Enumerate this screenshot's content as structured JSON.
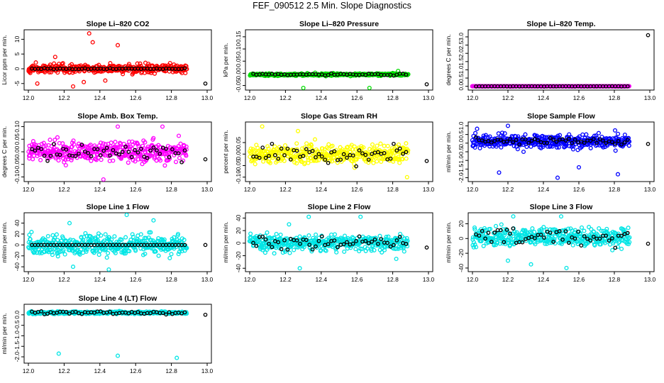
{
  "page": {
    "title": "FEF_090512  2.5 Min. Slope Diagnostics"
  },
  "chart_data": [
    {
      "type": "scatter",
      "title": "Slope Li–820 CO2",
      "ylabel": "Licor ppm per min.",
      "xlim": [
        12.0,
        13.0
      ],
      "ylim": [
        -6.5,
        12.5
      ],
      "xticks": [
        "12.0",
        "12.2",
        "12.4",
        "12.6",
        "12.8",
        "13.0"
      ],
      "yticks": [
        "-5",
        "0",
        "5",
        "10"
      ],
      "yvals": [
        -5,
        0,
        5,
        10
      ],
      "color": "#ff0000",
      "spread": 1.3,
      "outliers": [
        [
          12.34,
          12
        ],
        [
          12.36,
          9
        ],
        [
          12.25,
          -6
        ],
        [
          12.05,
          -5
        ],
        [
          12.31,
          -4.5
        ],
        [
          12.5,
          8
        ],
        [
          12.43,
          -4
        ],
        [
          12.15,
          4
        ]
      ],
      "black_spread": 0.15,
      "last_point": [
        12.99,
        -5
      ]
    },
    {
      "type": "scatter",
      "title": "Slope Li–820 Pressure",
      "ylabel": "kPa per min.",
      "xlim": [
        12.0,
        13.0
      ],
      "ylim": [
        -0.06,
        0.17
      ],
      "xticks": [
        "12.0",
        "12.2",
        "12.4",
        "12.6",
        "12.8",
        "13.0"
      ],
      "yticks": [
        "-0.05",
        "0.00",
        "0.05",
        "0.10",
        "0.15"
      ],
      "yvals": [
        -0.05,
        0,
        0.05,
        0.1,
        0.15
      ],
      "color": "#00dd00",
      "spread": 0.004,
      "base": -0.005,
      "outliers": [
        [
          12.3,
          -0.06
        ],
        [
          12.67,
          -0.06
        ],
        [
          12.83,
          0.01
        ]
      ],
      "black_spread": 0.003,
      "last_point": [
        12.99,
        -0.045
      ]
    },
    {
      "type": "scatter",
      "title": "Slope Li–820 Temp.",
      "ylabel": "degrees C per min.",
      "xlim": [
        12.0,
        13.0
      ],
      "ylim": [
        -0.1,
        3.3
      ],
      "xticks": [
        "12.0",
        "12.2",
        "12.4",
        "12.6",
        "12.8",
        "13.0"
      ],
      "yticks": [
        "0.0",
        "0.5",
        "1.0",
        "1.5",
        "2.0",
        "2.5",
        "3.0"
      ],
      "yvals": [
        0,
        0.5,
        1,
        1.5,
        2,
        2.5,
        3
      ],
      "color": "#ee00ee",
      "spread": 0.01,
      "outliers": [],
      "black_spread": 0.005,
      "last_point": [
        12.99,
        3.1
      ]
    },
    {
      "type": "scatter",
      "title": "Slope Amb. Box Temp.",
      "ylabel": "degrees C per min.",
      "xlim": [
        12.0,
        13.0
      ],
      "ylim": [
        -0.11,
        0.11
      ],
      "xticks": [
        "12.0",
        "12.2",
        "12.4",
        "12.6",
        "12.8",
        "13.0"
      ],
      "yticks": [
        "-0.10",
        "-0.05",
        "0.00",
        "0.05",
        "0.10"
      ],
      "yvals": [
        -0.1,
        -0.05,
        0,
        0.05,
        0.1
      ],
      "color": "#ff00ff",
      "spread": 0.035,
      "outliers": [
        [
          12.42,
          -0.11
        ],
        [
          12.5,
          0.1
        ],
        [
          12.75,
          0.1
        ]
      ],
      "black_spread": 0.03,
      "last_point": [
        12.99,
        -0.03
      ]
    },
    {
      "type": "scatter",
      "title": "Slope Gas Stream RH",
      "ylabel": "percent per min.",
      "xlim": [
        12.0,
        13.0
      ],
      "ylim": [
        -0.11,
        0.13
      ],
      "xticks": [
        "12.0",
        "12.2",
        "12.4",
        "12.6",
        "12.8",
        "13.0"
      ],
      "yticks": [
        "-0.10",
        "-0.05",
        "0.00",
        "0.05"
      ],
      "yvals": [
        -0.1,
        -0.05,
        0,
        0.05
      ],
      "color": "#ffff00",
      "spread": 0.035,
      "outliers": [
        [
          12.07,
          0.12
        ],
        [
          12.27,
          0.1
        ],
        [
          12.88,
          -0.1
        ]
      ],
      "black_spread": 0.03,
      "last_point": [
        12.99,
        -0.03
      ]
    },
    {
      "type": "scatter",
      "title": "Slope Sample Flow",
      "ylabel": "ml/min per min.",
      "xlim": [
        12.0,
        13.0
      ],
      "ylim": [
        -2.1,
        1.1
      ],
      "xticks": [
        "12.0",
        "12.2",
        "12.4",
        "12.6",
        "12.8",
        "13.0"
      ],
      "yticks": [
        "-2.0",
        "-1.5",
        "-1.0",
        "-0.5",
        "0.0",
        "0.5",
        "1.0"
      ],
      "yvals": [
        -2,
        -1.5,
        -1,
        -0.5,
        0,
        0.5,
        1
      ],
      "color": "#0000ff",
      "spread": 0.35,
      "base": 0.1,
      "outliers": [
        [
          12.15,
          -1.7
        ],
        [
          12.48,
          -2.0
        ],
        [
          12.82,
          -1.8
        ],
        [
          12.6,
          -1.4
        ],
        [
          12.2,
          1.0
        ]
      ],
      "black_spread": 0.2,
      "last_point": [
        12.99,
        -0.05
      ]
    },
    {
      "type": "scatter",
      "title": "Slope Line 1 Flow",
      "ylabel": "ml/min per min.",
      "xlim": [
        12.0,
        13.0
      ],
      "ylim": [
        -45,
        55
      ],
      "xticks": [
        "12.0",
        "12.2",
        "12.4",
        "12.6",
        "12.8",
        "13.0"
      ],
      "yticks": [
        "-40",
        "-20",
        "0",
        "20",
        "40"
      ],
      "yvals": [
        -40,
        -20,
        0,
        20,
        40
      ],
      "color": "#00e5e5",
      "spread": 15,
      "outliers": [
        [
          12.23,
          40
        ],
        [
          12.55,
          55
        ],
        [
          12.45,
          -45
        ],
        [
          12.25,
          -40
        ],
        [
          12.7,
          45
        ]
      ],
      "black_spread": 0,
      "last_point": [
        12.99,
        0
      ]
    },
    {
      "type": "scatter",
      "title": "Slope Line 2 Flow",
      "ylabel": "ml/min per min.",
      "xlim": [
        12.0,
        13.0
      ],
      "ylim": [
        -42,
        45
      ],
      "xticks": [
        "12.0",
        "12.2",
        "12.4",
        "12.6",
        "12.8",
        "13.0"
      ],
      "yticks": [
        "-40",
        "-20",
        "0",
        "20",
        "40"
      ],
      "yvals": [
        -40,
        -20,
        0,
        20,
        40
      ],
      "color": "#00e5e5",
      "spread": 11,
      "outliers": [
        [
          12.33,
          42
        ],
        [
          12.62,
          42
        ],
        [
          12.22,
          30
        ],
        [
          12.28,
          -40
        ],
        [
          12.82,
          -25
        ]
      ],
      "black_spread": 8,
      "last_point": [
        12.99,
        -7
      ]
    },
    {
      "type": "scatter",
      "title": "Slope Line 3 Flow",
      "ylabel": "ml/min per min.",
      "xlim": [
        12.0,
        13.0
      ],
      "ylim": [
        -42,
        32
      ],
      "xticks": [
        "12.0",
        "12.2",
        "12.4",
        "12.6",
        "12.8",
        "13.0"
      ],
      "yticks": [
        "-40",
        "-20",
        "0",
        "20"
      ],
      "yvals": [
        -40,
        -20,
        0,
        20
      ],
      "color": "#00e5e5",
      "spread": 11,
      "base": 2,
      "outliers": [
        [
          12.23,
          30
        ],
        [
          12.5,
          30
        ],
        [
          12.53,
          -40
        ],
        [
          12.33,
          -35
        ],
        [
          12.2,
          -30
        ]
      ],
      "black_spread": 10,
      "last_point": [
        12.99,
        -7
      ]
    },
    {
      "type": "scatter",
      "title": "Slope Line 4 (LT) Flow",
      "ylabel": "ml/min per min.",
      "xlim": [
        12.0,
        13.0
      ],
      "ylim": [
        -2.2,
        0.4
      ],
      "xticks": [
        "12.0",
        "12.2",
        "12.4",
        "12.6",
        "12.8",
        "13.0"
      ],
      "yticks": [
        "-2.0",
        "-1.5",
        "-1.0",
        "-0.5",
        "0.0"
      ],
      "yvals": [
        -2,
        -1.5,
        -1,
        -0.5,
        0
      ],
      "color": "#00e5e5",
      "spread": 0.05,
      "base": 0.1,
      "outliers": [
        [
          12.17,
          -1.85
        ],
        [
          12.5,
          -1.95
        ],
        [
          12.83,
          -2.05
        ]
      ],
      "black_spread": 0.06,
      "last_point": [
        12.99,
        0.0
      ]
    }
  ]
}
